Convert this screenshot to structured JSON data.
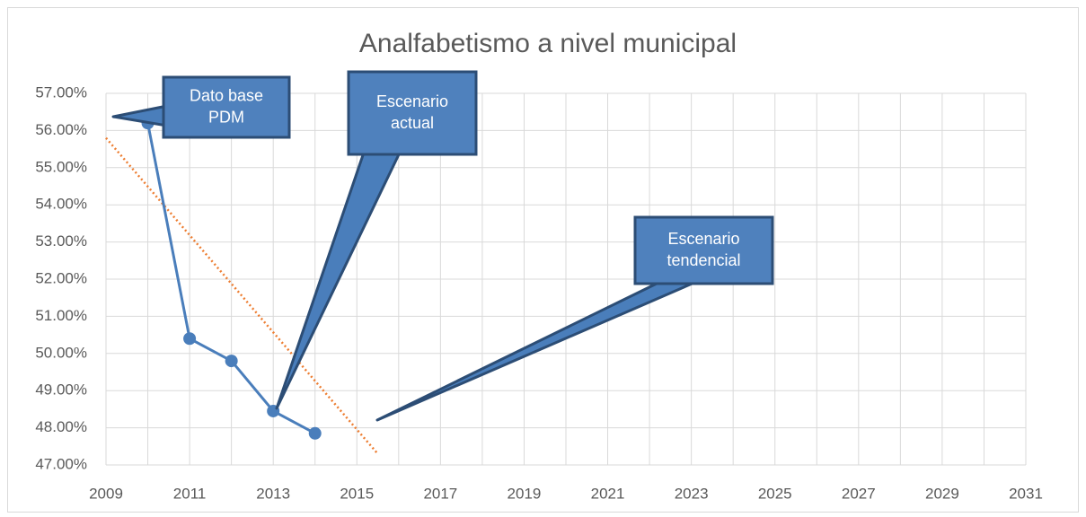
{
  "chart_data": {
    "type": "line",
    "title": "Analfabetismo a nivel municipal",
    "x": [
      2010,
      2011,
      2012,
      2013,
      2014
    ],
    "series": [
      {
        "color": "#4a7ebb",
        "values": [
          56.2,
          50.4,
          49.8,
          48.45,
          47.85
        ]
      }
    ],
    "trendline": {
      "color": "#ed7d31",
      "x": [
        2009,
        2015.5
      ],
      "values": [
        55.8,
        47.3
      ]
    },
    "xlim": [
      2009,
      2031
    ],
    "xticks": [
      2009,
      2011,
      2013,
      2015,
      2017,
      2019,
      2021,
      2023,
      2025,
      2027,
      2029,
      2031
    ],
    "xminorticks": [
      2010,
      2012,
      2014,
      2016,
      2018,
      2020,
      2022,
      2024,
      2026,
      2028,
      2030
    ],
    "ylim": [
      47,
      57
    ],
    "yticks": [
      {
        "value": 47,
        "label": "47.00%"
      },
      {
        "value": 48,
        "label": "48.00%"
      },
      {
        "value": 49,
        "label": "49.00%"
      },
      {
        "value": 50,
        "label": "50.00%"
      },
      {
        "value": 51,
        "label": "51.00%"
      },
      {
        "value": 52,
        "label": "52.00%"
      },
      {
        "value": 53,
        "label": "53.00%"
      },
      {
        "value": 54,
        "label": "54.00%"
      },
      {
        "value": 55,
        "label": "55.00%"
      },
      {
        "value": 56,
        "label": "56.00%"
      },
      {
        "value": 57,
        "label": "57.00%"
      }
    ],
    "grid": true,
    "annotations": [
      {
        "lines": [
          "Dato base",
          "PDM"
        ]
      },
      {
        "lines": [
          "Escenario",
          "actual"
        ]
      },
      {
        "lines": [
          "Escenario",
          "tendencial"
        ]
      }
    ]
  }
}
